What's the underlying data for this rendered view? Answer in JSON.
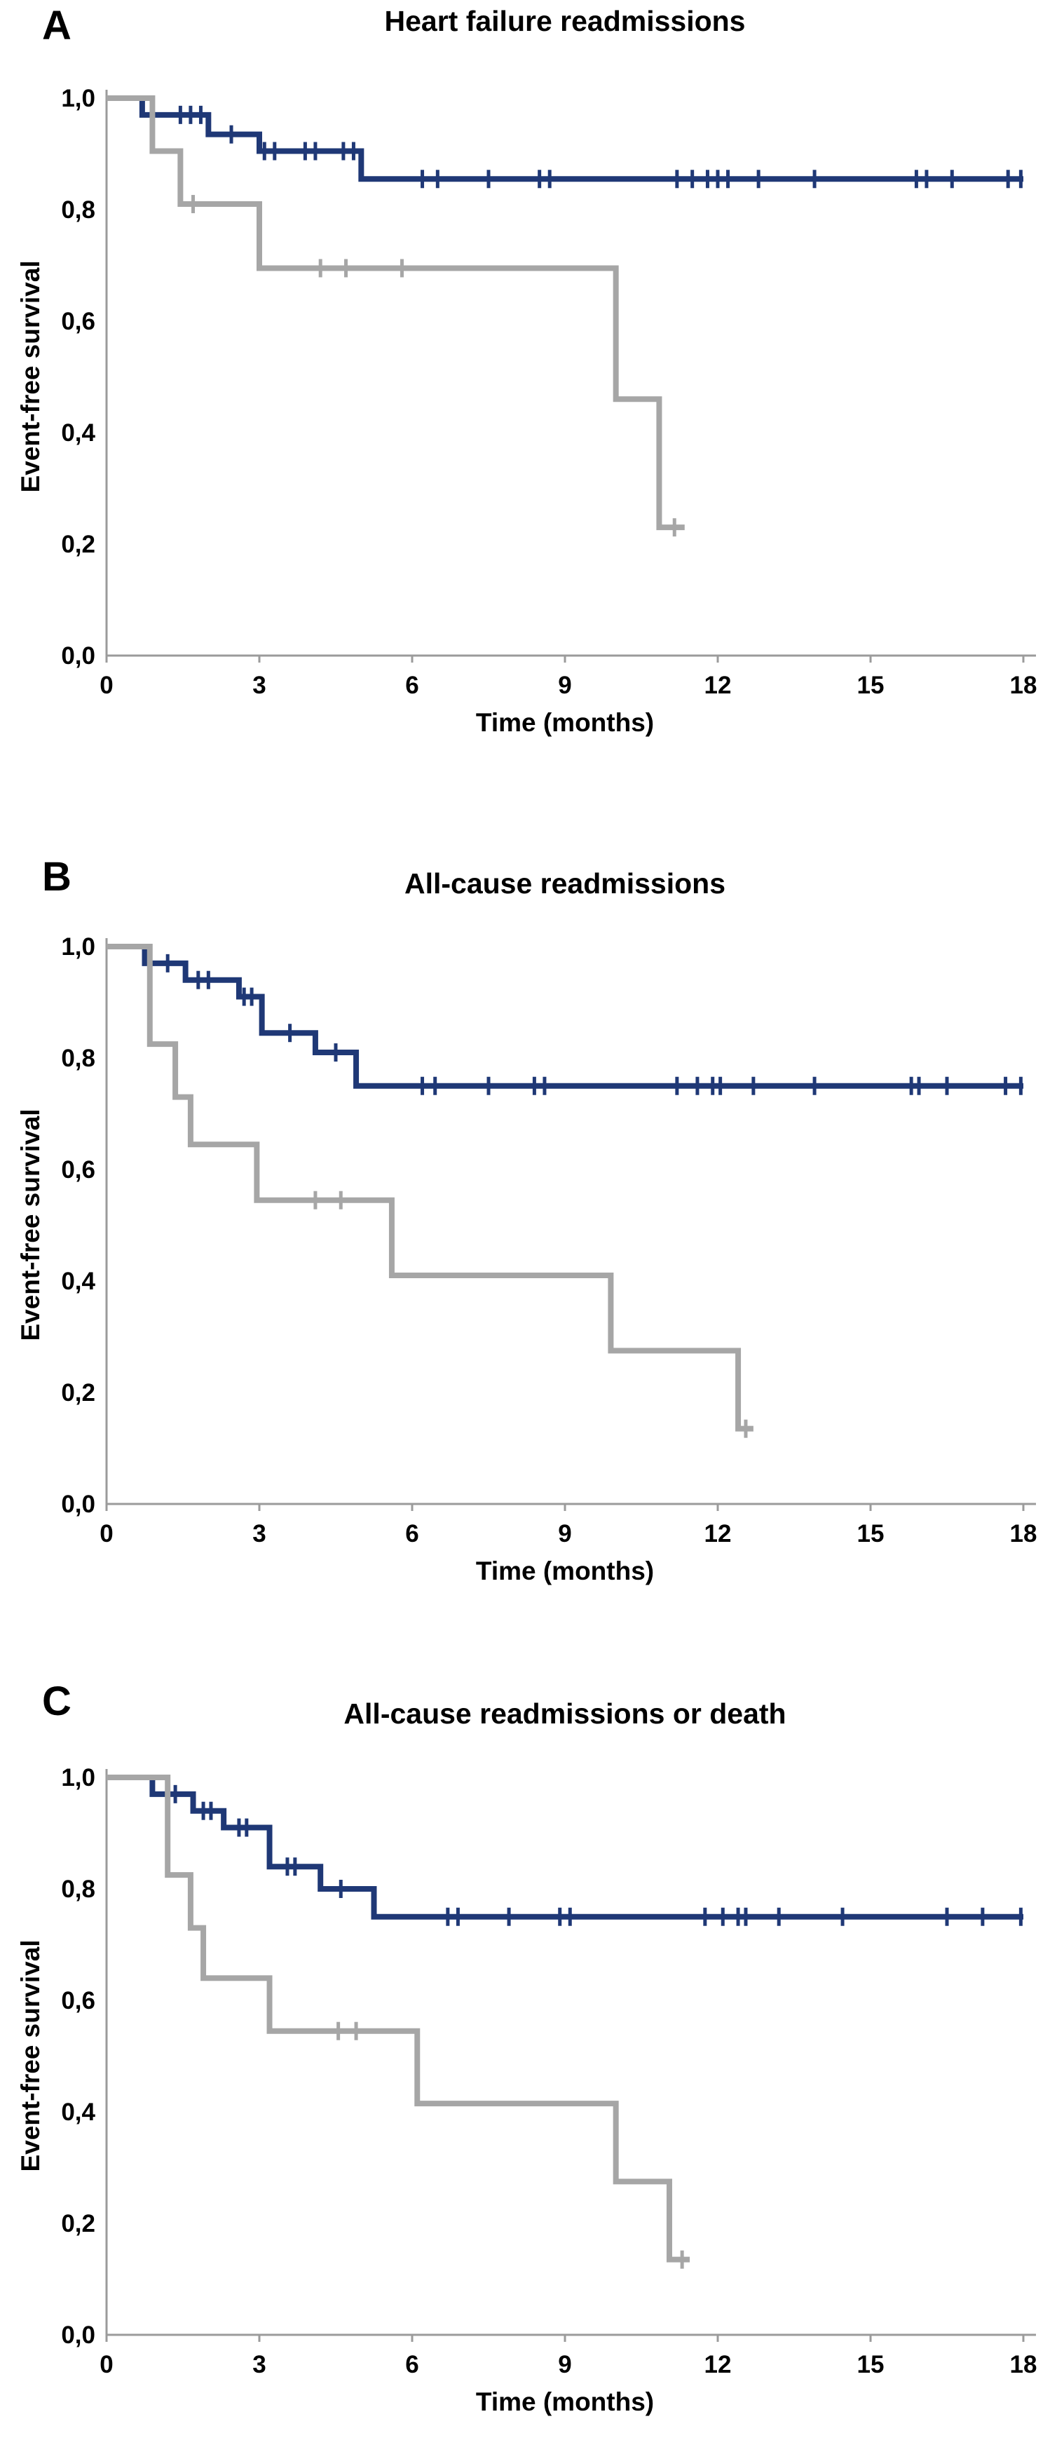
{
  "figure": {
    "y_axis_label": "Event-free survival",
    "x_axis_label": "Time (months)",
    "colors": {
      "navy_series": "#1f3876",
      "gray_series": "#a6a6a6",
      "axis": "#9b9b9b",
      "text": "#000000"
    }
  },
  "chart_data": [
    {
      "type": "line",
      "subtype": "kaplan-meier-step",
      "panel_label": "A",
      "title": "Heart failure readmissions",
      "xlabel": "Time (months)",
      "ylabel": "Event-free survival",
      "xlim": [
        0,
        18
      ],
      "ylim": [
        0,
        1
      ],
      "xticks": [
        0,
        3,
        6,
        9,
        12,
        15,
        18
      ],
      "yticks": [
        {
          "v": 1.0,
          "label": "1,0"
        },
        {
          "v": 0.8,
          "label": "0,8"
        },
        {
          "v": 0.6,
          "label": "0,6"
        },
        {
          "v": 0.4,
          "label": "0,4"
        },
        {
          "v": 0.2,
          "label": "0,2"
        },
        {
          "v": 0.0,
          "label": "0,0"
        }
      ],
      "axis_color": "#9b9b9b",
      "legend": "none",
      "grid": false,
      "series": [
        {
          "name": "navy-group",
          "color": "#1f3876",
          "steps": [
            [
              0,
              1.0
            ],
            [
              0.7,
              0.97
            ],
            [
              2.0,
              0.935
            ],
            [
              3.0,
              0.905
            ],
            [
              5.0,
              0.855
            ],
            [
              18,
              0.855
            ]
          ],
          "censors": [
            [
              1.45,
              0.97
            ],
            [
              1.65,
              0.97
            ],
            [
              1.85,
              0.97
            ],
            [
              2.45,
              0.935
            ],
            [
              3.1,
              0.905
            ],
            [
              3.3,
              0.905
            ],
            [
              3.9,
              0.905
            ],
            [
              4.1,
              0.905
            ],
            [
              4.65,
              0.905
            ],
            [
              4.85,
              0.905
            ],
            [
              6.2,
              0.855
            ],
            [
              6.5,
              0.855
            ],
            [
              7.5,
              0.855
            ],
            [
              8.5,
              0.855
            ],
            [
              8.7,
              0.855
            ],
            [
              11.2,
              0.855
            ],
            [
              11.5,
              0.855
            ],
            [
              11.8,
              0.855
            ],
            [
              12.0,
              0.855
            ],
            [
              12.2,
              0.855
            ],
            [
              12.8,
              0.855
            ],
            [
              13.9,
              0.855
            ],
            [
              15.9,
              0.855
            ],
            [
              16.1,
              0.855
            ],
            [
              16.6,
              0.855
            ],
            [
              17.7,
              0.855
            ],
            [
              17.95,
              0.855
            ]
          ]
        },
        {
          "name": "gray-group",
          "color": "#a6a6a6",
          "steps": [
            [
              0,
              1.0
            ],
            [
              0.9,
              0.905
            ],
            [
              1.45,
              0.81
            ],
            [
              3.0,
              0.695
            ],
            [
              10.0,
              0.46
            ],
            [
              10.85,
              0.23
            ],
            [
              11.35,
              0.23
            ]
          ],
          "censors": [
            [
              1.7,
              0.81
            ],
            [
              4.2,
              0.695
            ],
            [
              4.7,
              0.695
            ],
            [
              5.8,
              0.695
            ],
            [
              11.15,
              0.23
            ]
          ]
        }
      ]
    },
    {
      "type": "line",
      "subtype": "kaplan-meier-step",
      "panel_label": "B",
      "title": "All-cause readmissions",
      "xlabel": "Time (months)",
      "ylabel": "Event-free survival",
      "xlim": [
        0,
        18
      ],
      "ylim": [
        0,
        1
      ],
      "xticks": [
        0,
        3,
        6,
        9,
        12,
        15,
        18
      ],
      "yticks": [
        {
          "v": 1.0,
          "label": "1,0"
        },
        {
          "v": 0.8,
          "label": "0,8"
        },
        {
          "v": 0.6,
          "label": "0,6"
        },
        {
          "v": 0.4,
          "label": "0,4"
        },
        {
          "v": 0.2,
          "label": "0,2"
        },
        {
          "v": 0.0,
          "label": "0,0"
        }
      ],
      "axis_color": "#9b9b9b",
      "legend": "none",
      "grid": false,
      "series": [
        {
          "name": "navy-group",
          "color": "#1f3876",
          "steps": [
            [
              0,
              1.0
            ],
            [
              0.75,
              0.97
            ],
            [
              1.55,
              0.94
            ],
            [
              2.6,
              0.91
            ],
            [
              3.05,
              0.845
            ],
            [
              4.1,
              0.81
            ],
            [
              4.9,
              0.75
            ],
            [
              18,
              0.75
            ]
          ],
          "censors": [
            [
              1.2,
              0.97
            ],
            [
              1.8,
              0.94
            ],
            [
              2.0,
              0.94
            ],
            [
              2.7,
              0.91
            ],
            [
              2.85,
              0.91
            ],
            [
              3.6,
              0.845
            ],
            [
              4.5,
              0.81
            ],
            [
              6.2,
              0.75
            ],
            [
              6.45,
              0.75
            ],
            [
              7.5,
              0.75
            ],
            [
              8.4,
              0.75
            ],
            [
              8.6,
              0.75
            ],
            [
              11.2,
              0.75
            ],
            [
              11.6,
              0.75
            ],
            [
              11.9,
              0.75
            ],
            [
              12.05,
              0.75
            ],
            [
              12.7,
              0.75
            ],
            [
              13.9,
              0.75
            ],
            [
              15.8,
              0.75
            ],
            [
              15.95,
              0.75
            ],
            [
              16.5,
              0.75
            ],
            [
              17.65,
              0.75
            ],
            [
              17.95,
              0.75
            ]
          ]
        },
        {
          "name": "gray-group",
          "color": "#a6a6a6",
          "steps": [
            [
              0,
              1.0
            ],
            [
              0.85,
              0.825
            ],
            [
              1.35,
              0.73
            ],
            [
              1.65,
              0.645
            ],
            [
              2.95,
              0.545
            ],
            [
              5.6,
              0.41
            ],
            [
              9.9,
              0.275
            ],
            [
              12.4,
              0.135
            ],
            [
              12.7,
              0.135
            ]
          ],
          "censors": [
            [
              4.1,
              0.545
            ],
            [
              4.6,
              0.545
            ],
            [
              12.55,
              0.135
            ]
          ]
        }
      ]
    },
    {
      "type": "line",
      "subtype": "kaplan-meier-step",
      "panel_label": "C",
      "title": "All-cause readmissions or death",
      "xlabel": "Time (months)",
      "ylabel": "Event-free survival",
      "xlim": [
        0,
        18
      ],
      "ylim": [
        0,
        1
      ],
      "xticks": [
        0,
        3,
        6,
        9,
        12,
        15,
        18
      ],
      "yticks": [
        {
          "v": 1.0,
          "label": "1,0"
        },
        {
          "v": 0.8,
          "label": "0,8"
        },
        {
          "v": 0.6,
          "label": "0,6"
        },
        {
          "v": 0.4,
          "label": "0,4"
        },
        {
          "v": 0.2,
          "label": "0,2"
        },
        {
          "v": 0.0,
          "label": "0,0"
        }
      ],
      "axis_color": "#9b9b9b",
      "legend": "none",
      "grid": false,
      "series": [
        {
          "name": "navy-group",
          "color": "#1f3876",
          "steps": [
            [
              0,
              1.0
            ],
            [
              0.9,
              0.97
            ],
            [
              1.7,
              0.94
            ],
            [
              2.3,
              0.91
            ],
            [
              3.2,
              0.84
            ],
            [
              4.2,
              0.8
            ],
            [
              5.25,
              0.75
            ],
            [
              18,
              0.75
            ]
          ],
          "censors": [
            [
              1.35,
              0.97
            ],
            [
              1.9,
              0.94
            ],
            [
              2.05,
              0.94
            ],
            [
              2.6,
              0.91
            ],
            [
              2.75,
              0.91
            ],
            [
              3.55,
              0.84
            ],
            [
              3.7,
              0.84
            ],
            [
              4.6,
              0.8
            ],
            [
              6.7,
              0.75
            ],
            [
              6.9,
              0.75
            ],
            [
              7.9,
              0.75
            ],
            [
              8.9,
              0.75
            ],
            [
              9.1,
              0.75
            ],
            [
              11.75,
              0.75
            ],
            [
              12.1,
              0.75
            ],
            [
              12.4,
              0.75
            ],
            [
              12.55,
              0.75
            ],
            [
              13.2,
              0.75
            ],
            [
              14.45,
              0.75
            ],
            [
              16.5,
              0.75
            ],
            [
              17.2,
              0.75
            ],
            [
              17.95,
              0.75
            ]
          ]
        },
        {
          "name": "gray-group",
          "color": "#a6a6a6",
          "steps": [
            [
              0,
              1.0
            ],
            [
              1.2,
              0.825
            ],
            [
              1.65,
              0.73
            ],
            [
              1.9,
              0.64
            ],
            [
              3.2,
              0.545
            ],
            [
              6.1,
              0.415
            ],
            [
              10.0,
              0.275
            ],
            [
              11.05,
              0.135
            ],
            [
              11.45,
              0.135
            ]
          ],
          "censors": [
            [
              4.55,
              0.545
            ],
            [
              4.9,
              0.545
            ],
            [
              11.3,
              0.135
            ]
          ]
        }
      ]
    }
  ]
}
